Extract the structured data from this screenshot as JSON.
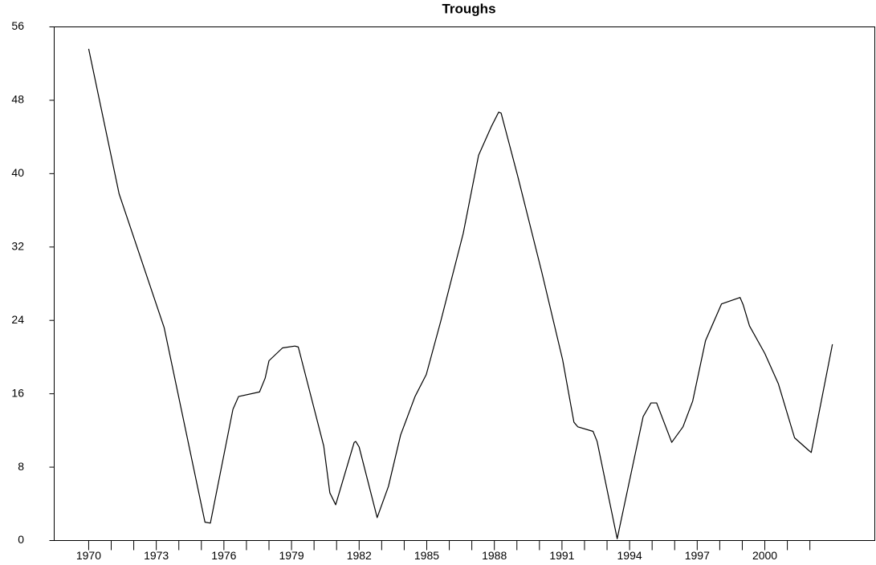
{
  "chart_data": {
    "type": "line",
    "title": "Troughs",
    "x": [
      1970.0,
      1971.35,
      1973.35,
      1975.16,
      1975.4,
      1976.4,
      1976.65,
      1977.58,
      1977.83,
      1978.0,
      1978.6,
      1979.15,
      1979.3,
      1980.43,
      1980.7,
      1980.96,
      1981.78,
      1981.85,
      1982.0,
      1982.8,
      1983.3,
      1983.84,
      1984.13,
      1984.48,
      1984.98,
      1985.62,
      1986.62,
      1987.3,
      1987.86,
      1988.19,
      1988.3,
      1989.04,
      1990.1,
      1991.03,
      1991.53,
      1991.7,
      1992.38,
      1992.56,
      1993.45,
      1994.6,
      1994.95,
      1995.2,
      1995.87,
      1996.37,
      1996.8,
      1997.37,
      1998.08,
      1998.9,
      1999.04,
      1999.32,
      2000.0,
      2000.6,
      2001.32,
      2001.96,
      2002.06,
      2003.0
    ],
    "series": [
      {
        "name": "Troughs",
        "color": "#000000",
        "values": [
          53.6,
          37.8,
          23.2,
          2.0,
          1.9,
          14.3,
          15.7,
          16.2,
          17.7,
          19.6,
          21.0,
          21.2,
          21.1,
          10.3,
          5.2,
          3.9,
          10.7,
          10.8,
          10.2,
          2.5,
          5.9,
          11.5,
          13.4,
          15.7,
          18.1,
          23.9,
          33.5,
          42.0,
          45.1,
          46.7,
          46.6,
          39.7,
          29.3,
          19.7,
          12.9,
          12.4,
          11.9,
          10.8,
          0.2,
          13.5,
          15.0,
          15.0,
          10.7,
          12.4,
          15.2,
          21.8,
          25.8,
          26.5,
          25.7,
          23.4,
          20.4,
          17.1,
          11.2,
          9.8,
          9.6,
          21.4
        ]
      }
    ],
    "xlim": [
      1968.47,
      2004.88
    ],
    "xticks": [
      1970,
      1973,
      1976,
      1979,
      1982,
      1985,
      1988,
      1991,
      1994,
      1997,
      2000
    ],
    "xminorticks": [
      1971,
      1972,
      1974,
      1975,
      1977,
      1978,
      1980,
      1981,
      1983,
      1984,
      1986,
      1987,
      1989,
      1990,
      1992,
      1993,
      1995,
      1996,
      1998,
      1999,
      2001,
      2002
    ],
    "ylim": [
      0,
      56
    ],
    "yticks": [
      0,
      8,
      16,
      24,
      32,
      40,
      48,
      56
    ],
    "grid": false
  }
}
